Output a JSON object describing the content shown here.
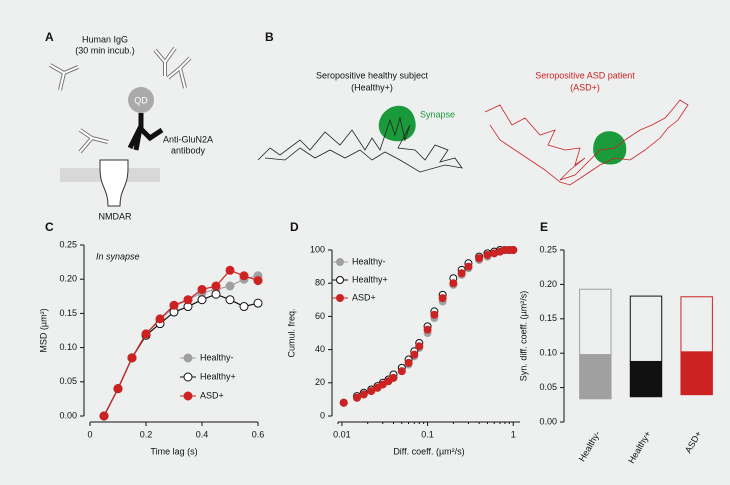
{
  "panels": {
    "A": {
      "label": "A",
      "igg": "Human IgG",
      "incub": "(30 min incub.)",
      "qd": "QD",
      "antibody1": "Anti-GluN2A",
      "antibody2": "antibody",
      "receptor": "NMDAR"
    },
    "B": {
      "label": "B",
      "healthy1": "Seropositive healthy subject",
      "healthy2": "(Healthy+)",
      "synapse": "Synapse",
      "asd1": "Seropositive ASD patient",
      "asd2": "(ASD+)"
    }
  },
  "chart_data": [
    {
      "type": "line",
      "label": "C",
      "annotation": "In synapse",
      "xlabel": "Time lag (s)",
      "ylabel": "MSD (µm²)",
      "x": [
        0.05,
        0.1,
        0.15,
        0.2,
        0.25,
        0.3,
        0.35,
        0.4,
        0.45,
        0.5,
        0.55,
        0.6
      ],
      "xlim": [
        0,
        0.6
      ],
      "xticks": [
        0,
        0.2,
        0.4,
        0.6
      ],
      "ylim": [
        0,
        0.25
      ],
      "yticks": [
        {
          "value": 0,
          "label": "0.00"
        },
        0.05,
        {
          "value": 0.1,
          "label": "0.10"
        },
        0.15,
        {
          "value": 0.2,
          "label": "0.20"
        },
        0.25
      ],
      "legend": "lower right",
      "series": [
        {
          "name": "Healthy-",
          "color": "#a0a0a0",
          "values": [
            0,
            0.04,
            0.085,
            0.12,
            0.14,
            0.16,
            0.17,
            0.18,
            0.185,
            0.19,
            0.2,
            0.205
          ]
        },
        {
          "name": "Healthy+",
          "color": "#111111",
          "open": true,
          "values": [
            0,
            0.04,
            0.085,
            0.118,
            0.135,
            0.152,
            0.16,
            0.17,
            0.178,
            0.17,
            0.16,
            0.165
          ]
        },
        {
          "name": "ASD+",
          "color": "#cc2222",
          "values": [
            0,
            0.04,
            0.085,
            0.12,
            0.142,
            0.162,
            0.17,
            0.185,
            0.19,
            0.213,
            0.205,
            0.198
          ]
        }
      ]
    },
    {
      "type": "scatter",
      "label": "D",
      "xlabel": "Diff. coeff. (µm²/s)",
      "ylabel": "Cumul. freq.",
      "xscale": "log",
      "x": [
        0.0105,
        0.015,
        0.018,
        0.022,
        0.026,
        0.03,
        0.035,
        0.04,
        0.05,
        0.06,
        0.07,
        0.08,
        0.1,
        0.12,
        0.15,
        0.2,
        0.25,
        0.3,
        0.4,
        0.5,
        0.6,
        0.7,
        0.8,
        0.9,
        1
      ],
      "xlim": [
        0.009,
        1.2
      ],
      "xticks": [
        0.01,
        0.1,
        1
      ],
      "ylim": [
        0,
        100
      ],
      "yticks": [
        0,
        20,
        40,
        60,
        80,
        100
      ],
      "legend": "upper left",
      "series": [
        {
          "name": "Healthy-",
          "color": "#a0a0a0",
          "values": [
            8,
            11,
            13,
            15,
            17,
            19,
            21,
            23,
            27,
            31,
            36,
            41,
            50,
            59,
            69,
            79,
            85,
            89,
            94,
            96,
            98,
            99,
            100,
            100,
            100
          ]
        },
        {
          "name": "Healthy+",
          "color": "#111111",
          "open": true,
          "values": [
            8,
            12,
            14,
            16,
            18,
            20,
            22,
            25,
            29,
            34,
            39,
            44,
            54,
            63,
            73,
            83,
            88,
            92,
            96,
            98,
            99,
            100,
            100,
            100,
            100
          ]
        },
        {
          "name": "ASD+",
          "color": "#cc2222",
          "values": [
            8,
            11,
            13,
            15,
            17,
            19,
            21,
            23,
            27,
            32,
            37,
            42,
            52,
            61,
            71,
            80,
            86,
            90,
            95,
            97,
            98,
            99,
            100,
            100,
            100
          ]
        }
      ]
    },
    {
      "type": "bar",
      "label": "E",
      "ylabel": "Syn. diff. coeff. (µm²/s)",
      "categories": [
        "Healthy-",
        "Healthy+",
        "ASD+"
      ],
      "colors": [
        "#a0a0a0",
        "#111111",
        "#cc2222"
      ],
      "low": [
        0.033,
        0.036,
        0.039
      ],
      "median": [
        0.098,
        0.088,
        0.102
      ],
      "high": [
        0.193,
        0.183,
        0.182
      ],
      "ylim": [
        0,
        0.25
      ],
      "yticks": [
        {
          "value": 0,
          "label": "0.00"
        },
        0.05,
        {
          "value": 0.1,
          "label": "0.10"
        },
        0.15,
        {
          "value": 0.2,
          "label": "0.20"
        },
        0.25
      ]
    }
  ]
}
